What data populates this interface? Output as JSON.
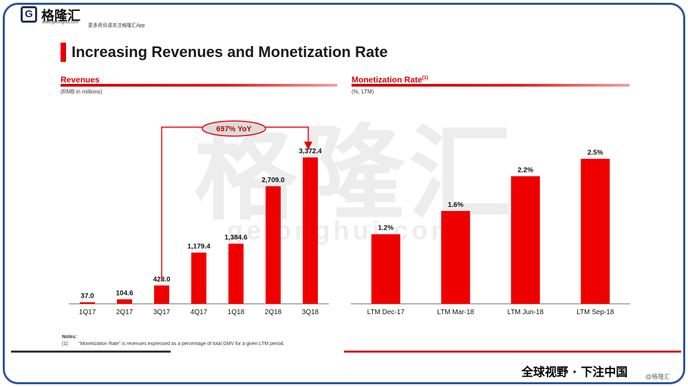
{
  "branding": {
    "logo_letter": "G",
    "logo_name": "格隆汇",
    "logo_url": "www.gelonghui.com",
    "tagline": "更多资讯请关注格隆汇App",
    "watermark": "格隆汇",
    "watermark_url": "gelonghui.com",
    "slogan": "全球视野 · 下注中国",
    "credit": "@格隆汇"
  },
  "slide": {
    "title": "Increasing Revenues and Monetization Rate"
  },
  "left_section": {
    "heading": "Revenues",
    "subheading": "(RMB in millions)",
    "callout": "697% YoY"
  },
  "right_section": {
    "heading": "Monetization Rate",
    "heading_sup": "(1)",
    "subheading": "(%, LTM)"
  },
  "notes": {
    "heading": "Notes:",
    "number": "(1)",
    "text": "“Monetization Rate” is revenues expressed as a percentage of total GMV for a given LTM period."
  },
  "colors": {
    "accent": "#e60000",
    "frame": "#2a5599"
  },
  "chart_data": [
    {
      "type": "bar",
      "title": "Revenues",
      "categories": [
        "1Q17",
        "2Q17",
        "3Q17",
        "4Q17",
        "1Q18",
        "2Q18",
        "3Q18"
      ],
      "values": [
        37.0,
        104.6,
        423.0,
        1179.4,
        1384.6,
        2709.0,
        3372.4
      ],
      "labels": [
        "37.0",
        "104.6",
        "423.0",
        "1,179.4",
        "1,384.6",
        "2,709.0",
        "3,372.4"
      ],
      "ylim": [
        0,
        3372.4
      ],
      "grid": false
    },
    {
      "type": "bar",
      "title": "Monetization Rate",
      "categories": [
        "LTM Dec-17",
        "LTM Mar-18",
        "LTM Jun-18",
        "LTM Sep-18"
      ],
      "values": [
        1.2,
        1.6,
        2.2,
        2.5
      ],
      "labels": [
        "1.2%",
        "1.6%",
        "2.2%",
        "2.5%"
      ],
      "ylim": [
        0,
        2.5
      ],
      "grid": false
    }
  ]
}
